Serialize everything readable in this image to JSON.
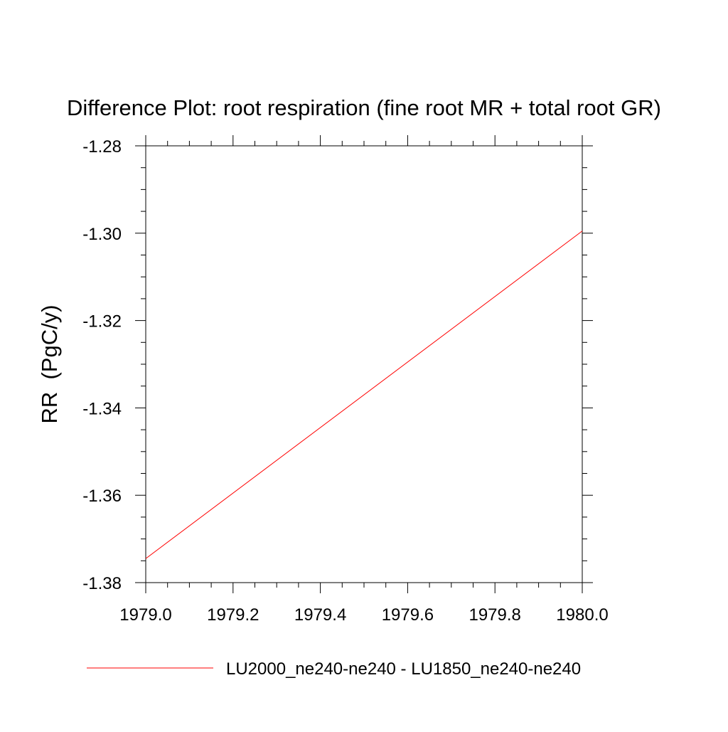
{
  "chart_data": {
    "type": "line",
    "title": "Difference Plot: root respiration (fine root MR + total root GR)",
    "xlabel": "",
    "ylabel": "RR  (PgC/y)",
    "xlim": [
      1979.0,
      1980.0
    ],
    "ylim": [
      -1.38,
      -1.28
    ],
    "x_ticks": [
      "1979.0",
      "1979.2",
      "1979.4",
      "1979.6",
      "1979.8",
      "1980.0"
    ],
    "y_ticks": [
      "-1.28",
      "-1.30",
      "-1.32",
      "-1.34",
      "-1.36",
      "-1.38"
    ],
    "grid": false,
    "legend_position": "bottom",
    "series": [
      {
        "name": "LU2000_ne240-ne240 - LU1850_ne240-ne240",
        "color": "#ff0000",
        "x": [
          1979.0,
          1980.0
        ],
        "y": [
          -1.3745,
          -1.2995
        ]
      }
    ]
  }
}
